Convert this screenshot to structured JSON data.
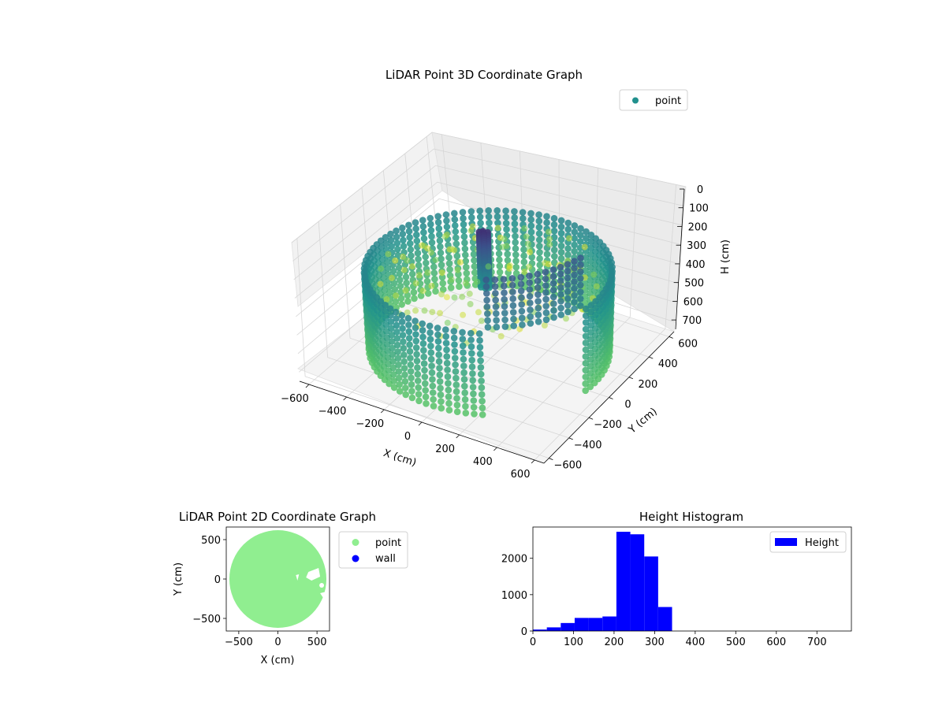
{
  "chart_data": [
    {
      "type": "scatter",
      "projection": "3d",
      "title": "LiDAR Point 3D Coordinate Graph",
      "xlabel": "X (cm)",
      "ylabel": "Y (cm)",
      "zlabel": "H (cm)",
      "xticks": [
        "−600",
        "−400",
        "−200",
        "0",
        "200",
        "400",
        "600"
      ],
      "yticks": [
        "−600",
        "−400",
        "−200",
        "0",
        "200",
        "400",
        "600"
      ],
      "zticks": [
        "0",
        "100",
        "200",
        "300",
        "400",
        "500",
        "600",
        "700"
      ],
      "xlim": [
        -650,
        650
      ],
      "ylim": [
        -650,
        650
      ],
      "zlim": [
        750,
        0
      ],
      "legend": {
        "position": "top-right",
        "entries": [
          {
            "name": "point",
            "color": "#21908d"
          }
        ]
      },
      "colormap": "viridis",
      "colorscale_by": "height",
      "grid": true,
      "scene": {
        "wall": {
          "radius_cm": 570,
          "height_range_cm": [
            260,
            720
          ],
          "color_top": "#31688e",
          "color_bottom": "#7ad151"
        },
        "interior_floor": {
          "height_cm": 330,
          "color": "#addc30"
        },
        "central_object": {
          "x_cm": -60,
          "y_cm": 60,
          "height_range_cm": [
            120,
            420
          ],
          "color": "#3e4a89"
        },
        "gap_sector": {
          "start_deg": 300,
          "end_deg": 350
        }
      }
    },
    {
      "type": "scatter",
      "title": "LiDAR Point 2D Coordinate Graph",
      "xlabel": "X (cm)",
      "ylabel": "Y (cm)",
      "xticks": [
        "−500",
        "0",
        "500"
      ],
      "yticks": [
        "−500",
        "0",
        "500"
      ],
      "xlim": [
        -660,
        660
      ],
      "ylim": [
        -660,
        660
      ],
      "legend": {
        "position": "outside-right",
        "entries": [
          {
            "name": "point",
            "color": "#90ee90"
          },
          {
            "name": "wall",
            "color": "#0000ff"
          }
        ]
      },
      "series": [
        {
          "name": "point",
          "color": "#90ee90",
          "shape": "disk",
          "radius_cm": 620,
          "center": [
            0,
            0
          ]
        },
        {
          "name": "wall",
          "color": "#0000ff",
          "points": []
        }
      ]
    },
    {
      "type": "bar",
      "subtype": "histogram",
      "title": "Height Histogram",
      "xlabel": "",
      "ylabel": "",
      "xticks": [
        "0",
        "100",
        "200",
        "300",
        "400",
        "500",
        "600",
        "700"
      ],
      "yticks": [
        "0",
        "1000",
        "2000"
      ],
      "xlim": [
        0,
        785
      ],
      "ylim": [
        0,
        2860
      ],
      "legend": {
        "position": "top-right",
        "entries": [
          {
            "name": "Height",
            "color": "#0000ff"
          }
        ]
      },
      "bin_edges": [
        0,
        34.3,
        68.6,
        102.9,
        137.2,
        171.5,
        205.8,
        240.1,
        274.4,
        308.7,
        343
      ],
      "series": [
        {
          "name": "Height",
          "color": "#0000ff",
          "values": [
            40,
            100,
            220,
            360,
            360,
            400,
            2730,
            2660,
            2050,
            660
          ]
        }
      ]
    }
  ]
}
